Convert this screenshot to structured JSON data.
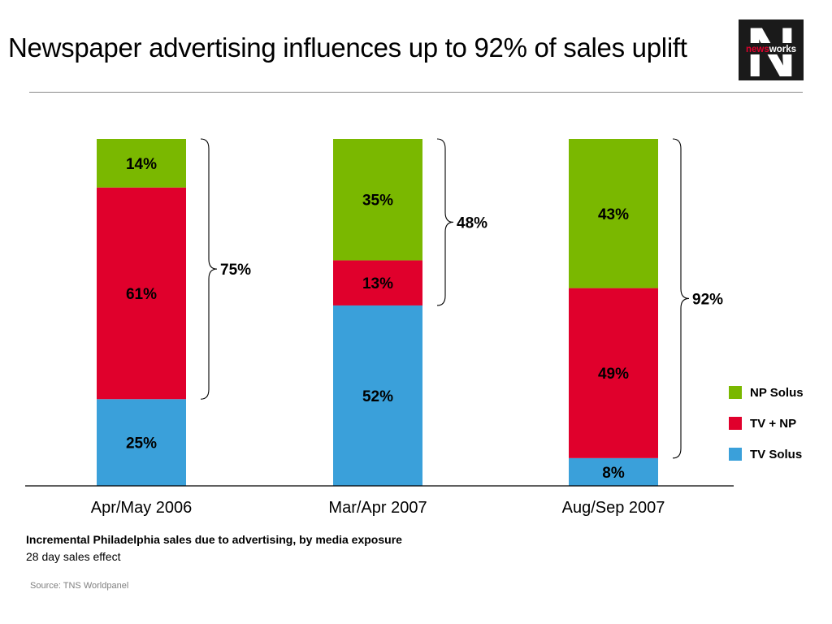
{
  "header": {
    "title": "Newspaper advertising influences up to 92% of sales uplift"
  },
  "logo": {
    "text_prefix": "news",
    "text_suffix": "works",
    "letter": "N"
  },
  "chart_data": {
    "type": "bar",
    "stacked": true,
    "categories": [
      "Apr/May 2006",
      "Mar/Apr 2007",
      "Aug/Sep 2007"
    ],
    "series": [
      {
        "name": "TV Solus",
        "color": "#3aa0da",
        "values": [
          25,
          52,
          8
        ],
        "labels": [
          "25%",
          "52%",
          "8%"
        ]
      },
      {
        "name": "TV + NP",
        "color": "#e0002c",
        "values": [
          61,
          13,
          49
        ],
        "labels": [
          "61%",
          "13%",
          "49%"
        ]
      },
      {
        "name": "NP Solus",
        "color": "#7ab800",
        "values": [
          14,
          35,
          43
        ],
        "labels": [
          "14%",
          "35%",
          "43%"
        ]
      }
    ],
    "bracket_totals": [
      "75%",
      "48%",
      "92%"
    ],
    "bracket_totals_values": [
      75,
      48,
      92
    ],
    "ylim": [
      0,
      100
    ],
    "legend_position": "right"
  },
  "legend": [
    {
      "label": "NP Solus",
      "color": "#7ab800"
    },
    {
      "label": "TV + NP",
      "color": "#e0002c"
    },
    {
      "label": "TV Solus",
      "color": "#3aa0da"
    }
  ],
  "caption": "Incremental Philadelphia sales due to advertising, by media exposure",
  "subcaption": "28 day sales effect",
  "source": "Source: TNS Worldpanel"
}
